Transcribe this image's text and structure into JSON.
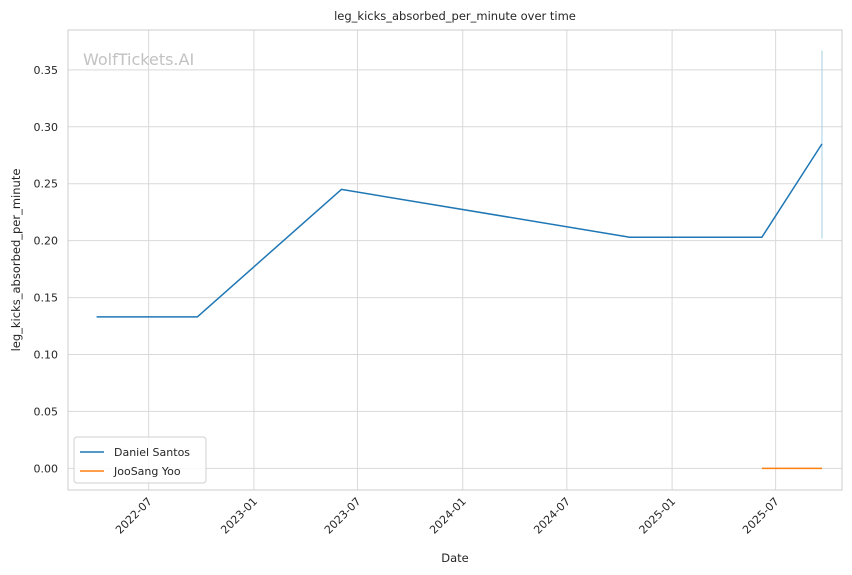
{
  "chart_data": {
    "type": "line",
    "title": "leg_kicks_absorbed_per_minute over time",
    "xlabel": "Date",
    "ylabel": "leg_kicks_absorbed_per_minute",
    "watermark": "WolfTickets.AI",
    "x_ticks": [
      "2022-07",
      "2023-01",
      "2023-07",
      "2024-01",
      "2024-07",
      "2025-01",
      "2025-07"
    ],
    "y_ticks": [
      "0.00",
      "0.05",
      "0.10",
      "0.15",
      "0.20",
      "0.25",
      "0.30",
      "0.35"
    ],
    "xlim": [
      "2022-02-10",
      "2025-10-25"
    ],
    "ylim": [
      -0.019,
      0.385
    ],
    "grid": true,
    "legend_position": "lower-left",
    "series": [
      {
        "name": "Daniel Santos",
        "color": "#1f77b4",
        "points": [
          {
            "x": "2022-04-01",
            "y": 0.133
          },
          {
            "x": "2022-09-24",
            "y": 0.133
          },
          {
            "x": "2023-06-03",
            "y": 0.245
          },
          {
            "x": "2024-10-19",
            "y": 0.203
          },
          {
            "x": "2025-06-07",
            "y": 0.203
          },
          {
            "x": "2025-09-20",
            "y": 0.285
          }
        ],
        "error_band": {
          "x": "2025-09-20",
          "low": 0.202,
          "high": 0.367,
          "color": "#a6cfe3"
        }
      },
      {
        "name": "JooSang Yoo",
        "color": "#ff7f0e",
        "points": [
          {
            "x": "2025-06-07",
            "y": 0.0
          },
          {
            "x": "2025-09-20",
            "y": 0.0
          }
        ]
      }
    ]
  }
}
